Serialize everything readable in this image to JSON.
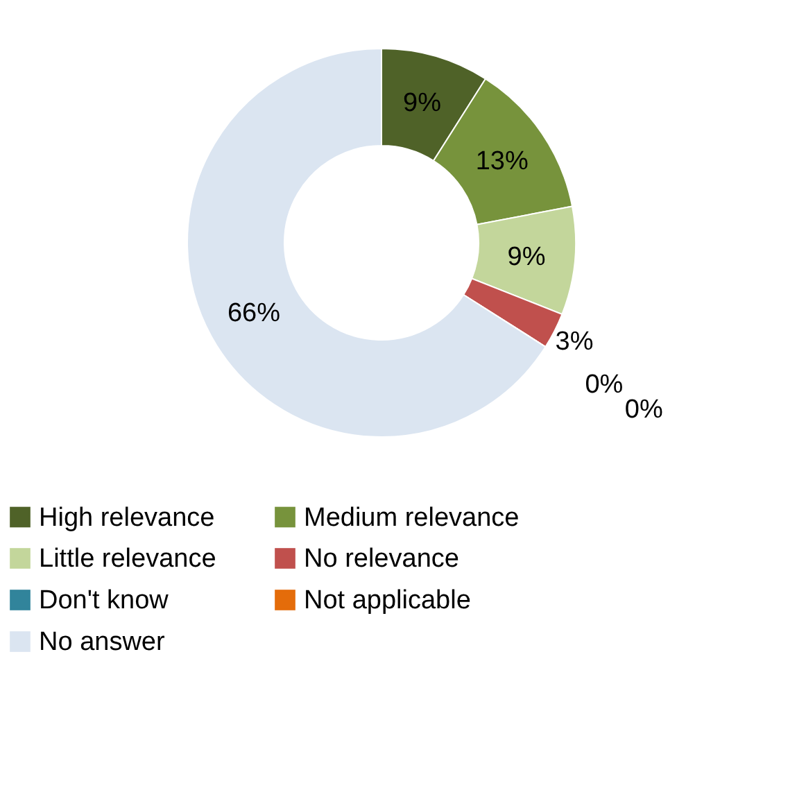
{
  "chart_data": {
    "type": "donut",
    "categories": [
      "High relevance",
      "Medium relevance",
      "Little relevance",
      "No relevance",
      "Don't know",
      "Not applicable",
      "No answer"
    ],
    "values": [
      9,
      13,
      9,
      3,
      0,
      0,
      66
    ],
    "colors": [
      "#4f6228",
      "#77933c",
      "#c3d69b",
      "#c0504d",
      "#31849b",
      "#e46c0a",
      "#dbe5f1"
    ],
    "value_labels": [
      "9%",
      "13%",
      "9%",
      "3%",
      "0%",
      "0%",
      "66%"
    ],
    "legend": "bottom"
  }
}
